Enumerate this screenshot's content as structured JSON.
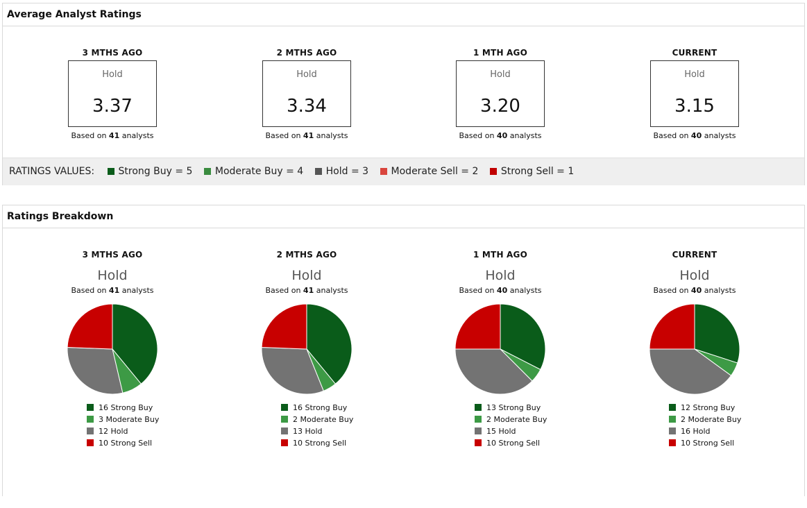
{
  "avg_panel": {
    "title": "Average Analyst Ratings",
    "columns": [
      {
        "period": "3 MTHS AGO",
        "label": "Hold",
        "score": "3.37",
        "based_prefix": "Based on",
        "analysts": "41",
        "based_suffix": "analysts"
      },
      {
        "period": "2 MTHS AGO",
        "label": "Hold",
        "score": "3.34",
        "based_prefix": "Based on",
        "analysts": "41",
        "based_suffix": "analysts"
      },
      {
        "period": "1 MTH AGO",
        "label": "Hold",
        "score": "3.20",
        "based_prefix": "Based on",
        "analysts": "40",
        "based_suffix": "analysts"
      },
      {
        "period": "CURRENT",
        "label": "Hold",
        "score": "3.15",
        "based_prefix": "Based on",
        "analysts": "40",
        "based_suffix": "analysts"
      }
    ],
    "ratings_values": {
      "label": "RATINGS VALUES:",
      "items": [
        {
          "text": "Strong Buy = 5",
          "color": "#0a5c1a"
        },
        {
          "text": "Moderate Buy = 4",
          "color": "#3a8c3f"
        },
        {
          "text": "Hold = 3",
          "color": "#555555"
        },
        {
          "text": "Moderate Sell = 2",
          "color": "#d9453d"
        },
        {
          "text": "Strong Sell = 1",
          "color": "#c00000"
        }
      ]
    }
  },
  "breakdown_panel": {
    "title": "Ratings Breakdown"
  },
  "colors": {
    "strong_buy": "#0a5c1a",
    "moderate_buy": "#3d9a45",
    "hold": "#737373",
    "strong_sell": "#c80000"
  },
  "chart_data": [
    {
      "type": "pie",
      "title": "3 MTHS AGO",
      "subtitle": "Hold",
      "based_prefix": "Based on",
      "analysts": "41",
      "based_suffix": "analysts",
      "categories": [
        "Strong Buy",
        "Moderate Buy",
        "Hold",
        "Strong Sell"
      ],
      "values": [
        16,
        3,
        12,
        10
      ],
      "legend": [
        "16 Strong Buy",
        "3 Moderate Buy",
        "12 Hold",
        "10 Strong Sell"
      ]
    },
    {
      "type": "pie",
      "title": "2 MTHS AGO",
      "subtitle": "Hold",
      "based_prefix": "Based on",
      "analysts": "41",
      "based_suffix": "analysts",
      "categories": [
        "Strong Buy",
        "Moderate Buy",
        "Hold",
        "Strong Sell"
      ],
      "values": [
        16,
        2,
        13,
        10
      ],
      "legend": [
        "16 Strong Buy",
        "2 Moderate Buy",
        "13 Hold",
        "10 Strong Sell"
      ]
    },
    {
      "type": "pie",
      "title": "1 MTH AGO",
      "subtitle": "Hold",
      "based_prefix": "Based on",
      "analysts": "40",
      "based_suffix": "analysts",
      "categories": [
        "Strong Buy",
        "Moderate Buy",
        "Hold",
        "Strong Sell"
      ],
      "values": [
        13,
        2,
        15,
        10
      ],
      "legend": [
        "13 Strong Buy",
        "2 Moderate Buy",
        "15 Hold",
        "10 Strong Sell"
      ]
    },
    {
      "type": "pie",
      "title": "CURRENT",
      "subtitle": "Hold",
      "based_prefix": "Based on",
      "analysts": "40",
      "based_suffix": "analysts",
      "categories": [
        "Strong Buy",
        "Moderate Buy",
        "Hold",
        "Strong Sell"
      ],
      "values": [
        12,
        2,
        16,
        10
      ],
      "legend": [
        "12 Strong Buy",
        "2 Moderate Buy",
        "16 Hold",
        "10 Strong Sell"
      ]
    }
  ]
}
